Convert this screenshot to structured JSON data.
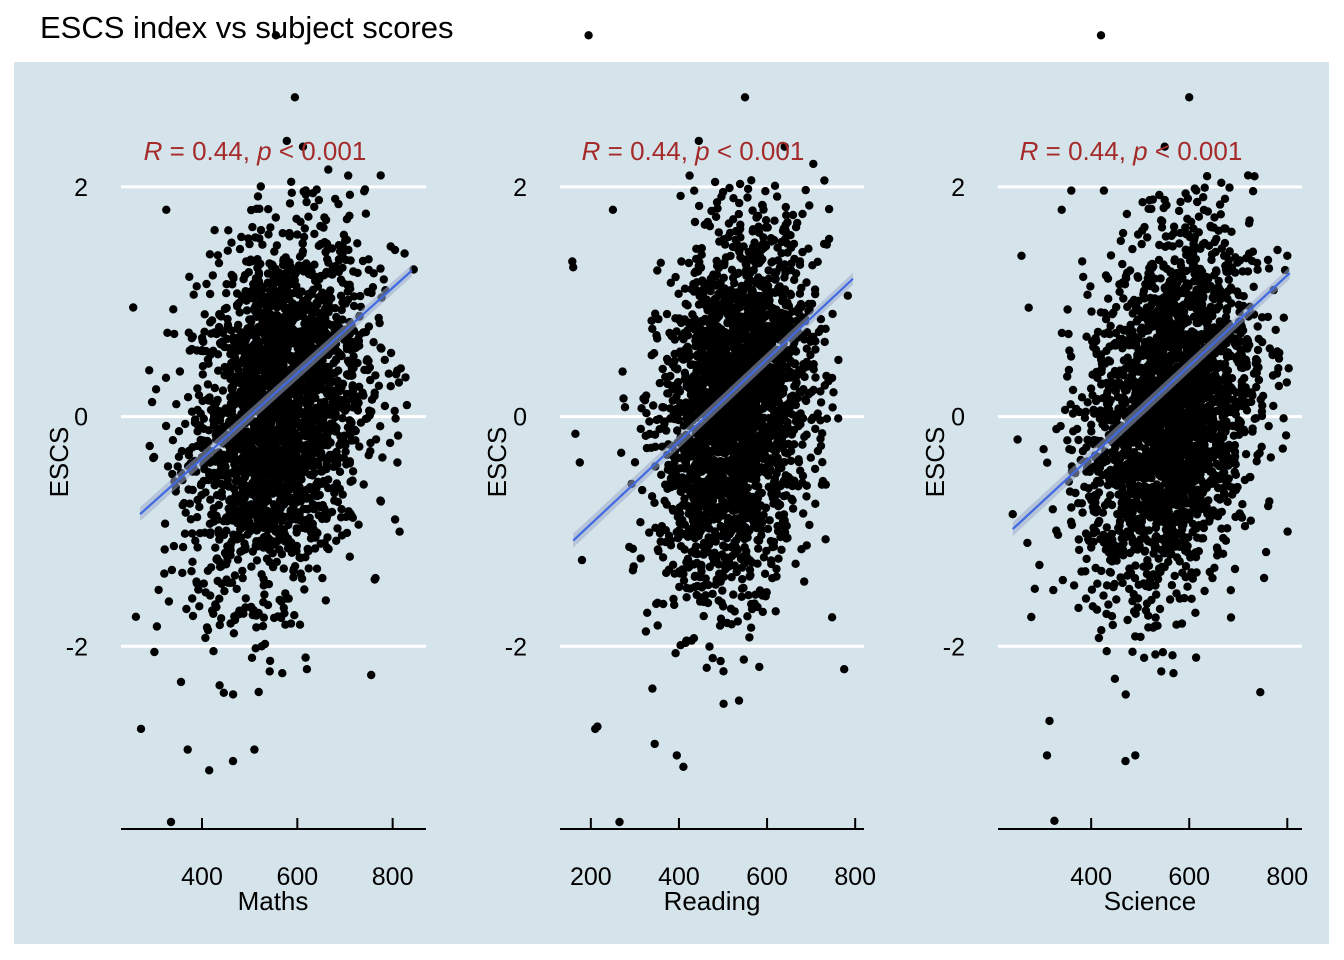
{
  "title": "ESCS index vs subject scores",
  "colors": {
    "panel_bg": "#d5e4eb",
    "grid": "#ffffff",
    "points": "#000000",
    "fit_line": "#4169e1",
    "stat_text": "#a52a2a"
  },
  "chart_data": [
    {
      "type": "scatter",
      "xlabel": "Maths",
      "ylabel": "ESCS",
      "xticks": [
        400,
        600,
        800
      ],
      "yticks": [
        -2,
        0,
        2
      ],
      "xlim": [
        230,
        870
      ],
      "ylim": [
        -3.6,
        2.8
      ],
      "grid": "horizontal",
      "correlation": {
        "r_label": "R",
        "r": "0.44",
        "p_label": "p",
        "p": "< 0.001"
      },
      "fit": {
        "x": [
          270,
          840
        ],
        "y": [
          -0.85,
          1.27
        ]
      },
      "cloud": {
        "center": [
          560,
          0.05
        ],
        "sd": [
          90,
          0.75
        ],
        "n": 2600
      },
      "points": [
        [
          555,
          3.32
        ],
        [
          595,
          2.78
        ],
        [
          325,
          1.8
        ],
        [
          335,
          -3.53
        ],
        [
          272,
          -2.72
        ],
        [
          415,
          -3.08
        ],
        [
          465,
          -3.0
        ],
        [
          510,
          -2.9
        ],
        [
          620,
          -2.2
        ],
        [
          755,
          -2.25
        ],
        [
          805,
          1.45
        ],
        [
          825,
          1.42
        ],
        [
          830,
          0.1
        ],
        [
          810,
          -0.4
        ],
        [
          775,
          2.1
        ],
        [
          665,
          2.15
        ],
        [
          578,
          2.4
        ],
        [
          612,
          2.35
        ],
        [
          370,
          -2.9
        ],
        [
          300,
          -2.05
        ]
      ]
    },
    {
      "type": "scatter",
      "xlabel": "Reading",
      "ylabel": "ESCS",
      "xticks": [
        200,
        400,
        600,
        800
      ],
      "yticks": [
        -2,
        0,
        2
      ],
      "xlim": [
        130,
        820
      ],
      "ylim": [
        -3.6,
        2.8
      ],
      "grid": "horizontal",
      "correlation": {
        "r_label": "R",
        "r": "0.44",
        "p_label": "p",
        "p": "< 0.001"
      },
      "fit": {
        "x": [
          160,
          795
        ],
        "y": [
          -1.08,
          1.2
        ]
      },
      "cloud": {
        "center": [
          530,
          0.05
        ],
        "sd": [
          85,
          0.75
        ],
        "n": 2600
      },
      "points": [
        [
          195,
          3.32
        ],
        [
          550,
          2.78
        ],
        [
          158,
          1.35
        ],
        [
          160,
          1.3
        ],
        [
          165,
          -0.15
        ],
        [
          175,
          -0.4
        ],
        [
          180,
          -1.25
        ],
        [
          210,
          -2.72
        ],
        [
          215,
          -2.7
        ],
        [
          265,
          -3.53
        ],
        [
          250,
          1.8
        ],
        [
          345,
          -2.85
        ],
        [
          395,
          -2.95
        ],
        [
          410,
          -3.05
        ],
        [
          445,
          2.4
        ],
        [
          640,
          2.35
        ],
        [
          705,
          2.2
        ],
        [
          775,
          -2.2
        ]
      ]
    },
    {
      "type": "scatter",
      "xlabel": "Science",
      "ylabel": "ESCS",
      "xticks": [
        400,
        600,
        800
      ],
      "yticks": [
        -2,
        0,
        2
      ],
      "xlim": [
        210,
        830
      ],
      "ylim": [
        -3.6,
        2.8
      ],
      "grid": "horizontal",
      "correlation": {
        "r_label": "R",
        "r": "0.44",
        "p_label": "p",
        "p": "< 0.001"
      },
      "fit": {
        "x": [
          240,
          805
        ],
        "y": [
          -0.98,
          1.25
        ]
      },
      "cloud": {
        "center": [
          560,
          0.05
        ],
        "sd": [
          85,
          0.75
        ],
        "n": 2600
      },
      "points": [
        [
          420,
          3.32
        ],
        [
          600,
          2.78
        ],
        [
          240,
          -0.85
        ],
        [
          250,
          -0.2
        ],
        [
          258,
          1.4
        ],
        [
          270,
          -1.1
        ],
        [
          285,
          -1.5
        ],
        [
          315,
          -2.65
        ],
        [
          325,
          -3.52
        ],
        [
          310,
          -2.95
        ],
        [
          340,
          1.8
        ],
        [
          470,
          -3.0
        ],
        [
          490,
          -2.95
        ],
        [
          550,
          2.35
        ],
        [
          720,
          2.1
        ],
        [
          780,
          1.45
        ],
        [
          800,
          1.4
        ],
        [
          745,
          -2.4
        ]
      ]
    }
  ]
}
